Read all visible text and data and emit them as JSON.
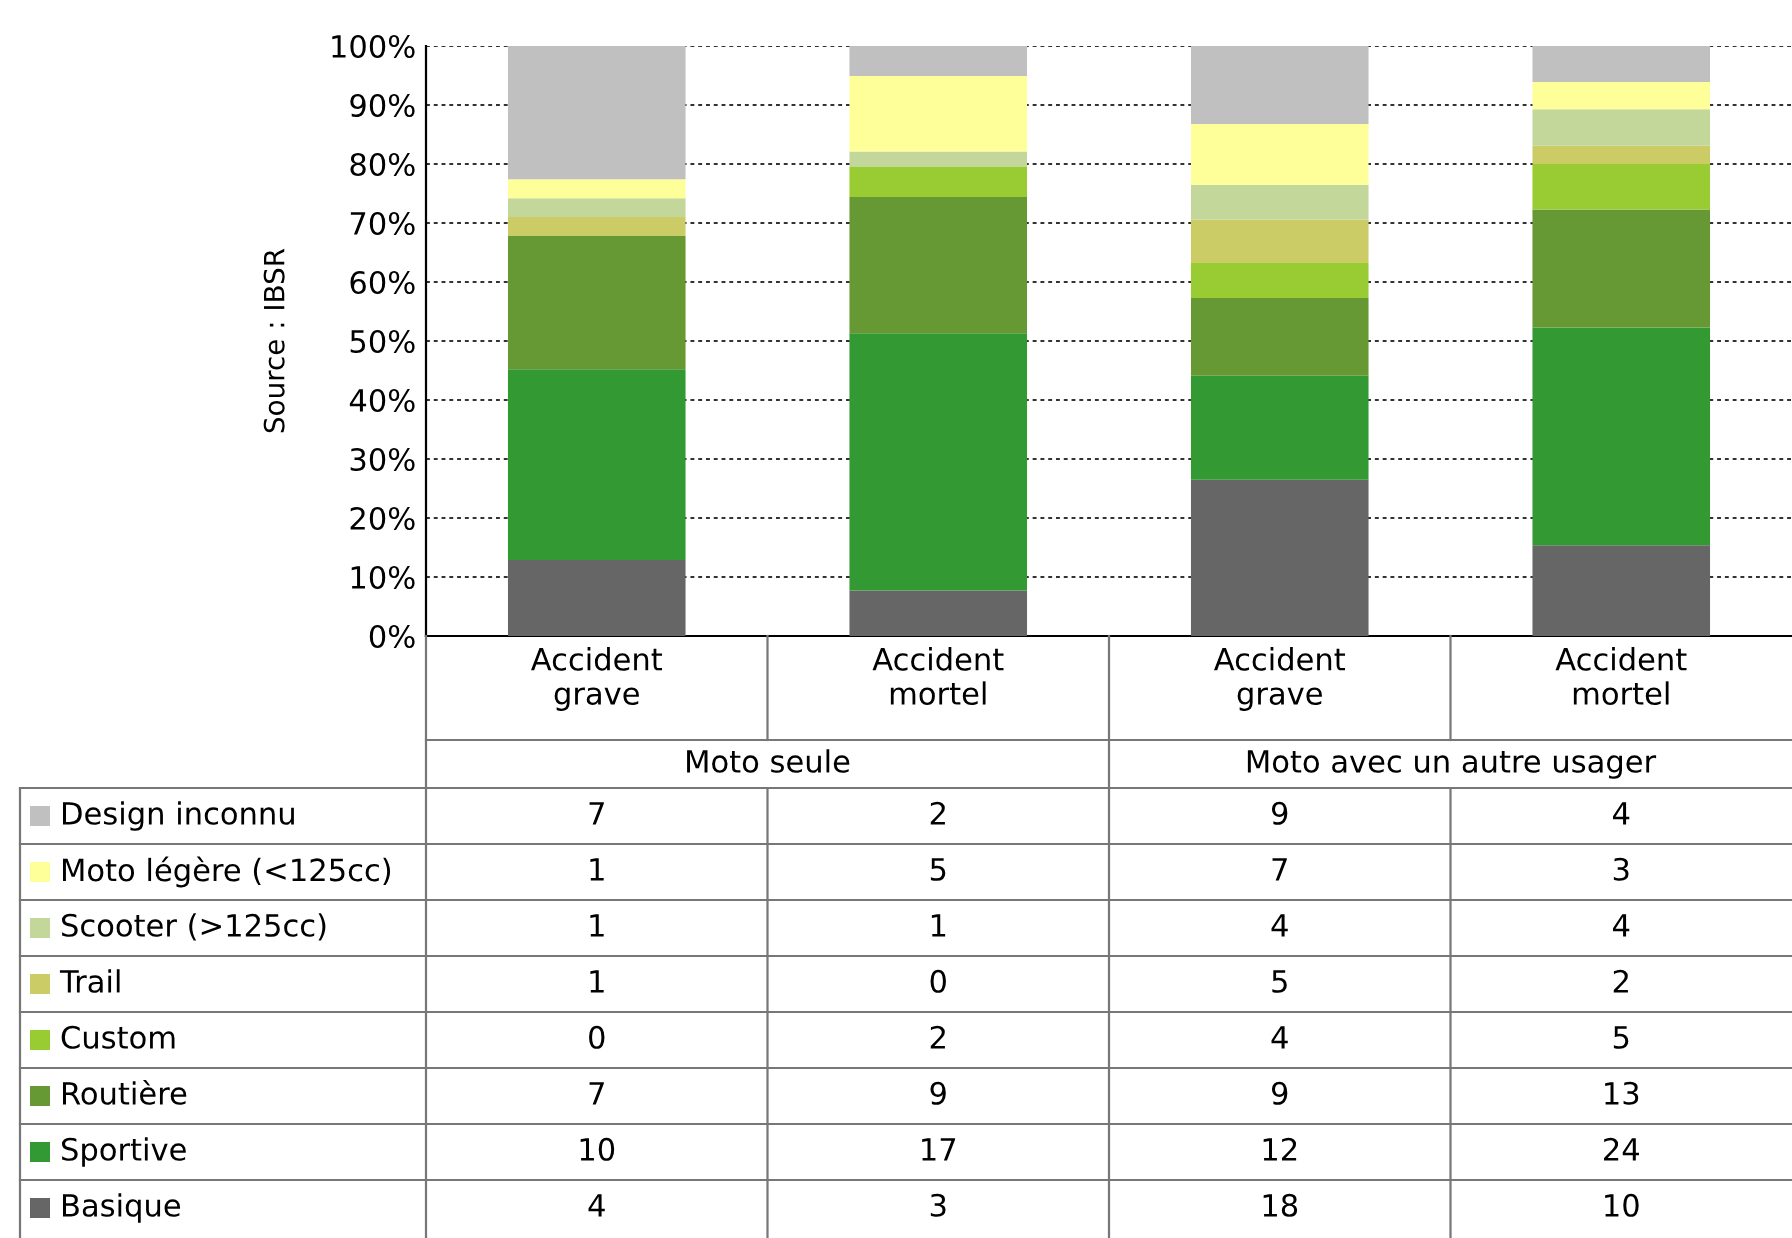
{
  "chart_data": {
    "type": "bar",
    "stacked": true,
    "ylabel": "Source : IBSR",
    "categories": [
      "Accident grave",
      "Accident mortel",
      "Accident grave",
      "Accident mortel"
    ],
    "annotations": [
      "Moto seule",
      "Moto avec un autre usager",
      "7",
      "2",
      "9",
      "4",
      "1",
      "5",
      "7",
      "3",
      "1",
      "1",
      "4",
      "4",
      "1",
      "0",
      "5",
      "2",
      "0",
      "2",
      "4",
      "5",
      "7",
      "9",
      "9",
      "13",
      "10",
      "17",
      "12",
      "24",
      "4",
      "3",
      "18",
      "10"
    ],
    "ylim": [
      0,
      100
    ],
    "yticks": [
      {
        "value": 0,
        "label": "0%"
      },
      {
        "value": 10,
        "label": "10%"
      },
      {
        "value": 20,
        "label": "20%"
      },
      {
        "value": 30,
        "label": "30%"
      },
      {
        "value": 40,
        "label": "40%"
      },
      {
        "value": 50,
        "label": "50%"
      },
      {
        "value": 60,
        "label": "60%"
      },
      {
        "value": 70,
        "label": "70%"
      },
      {
        "value": 80,
        "label": "80%"
      },
      {
        "value": 90,
        "label": "90%"
      },
      {
        "value": 100,
        "label": "100%"
      }
    ],
    "grid": "y",
    "legend": "bottom left",
    "series": [
      {
        "name": "Basique",
        "color": "#666666",
        "values": [
          12.9,
          7.7,
          26.5,
          15.4
        ]
      },
      {
        "name": "Sportive",
        "color": "#339933",
        "values": [
          32.3,
          43.6,
          17.6,
          36.9
        ]
      },
      {
        "name": "Routière",
        "color": "#669933",
        "values": [
          22.6,
          23.1,
          13.2,
          20.0
        ]
      },
      {
        "name": "Custom",
        "color": "#99cc33",
        "values": [
          0,
          5.1,
          5.9,
          7.7
        ]
      },
      {
        "name": "Trail",
        "color": "#cccc66",
        "values": [
          3.2,
          0,
          7.4,
          3.1
        ]
      },
      {
        "name": "Scooter (>125cc)",
        "color": "#c4d79b",
        "values": [
          3.2,
          2.6,
          5.9,
          6.2
        ]
      },
      {
        "name": "Moto légère (<125cc)",
        "color": "#ffff99",
        "values": [
          3.2,
          12.8,
          10.3,
          4.6
        ]
      },
      {
        "name": "Design inconnu",
        "color": "#c0c0c0",
        "values": [
          22.6,
          5.1,
          13.2,
          6.1
        ]
      }
    ]
  }
}
